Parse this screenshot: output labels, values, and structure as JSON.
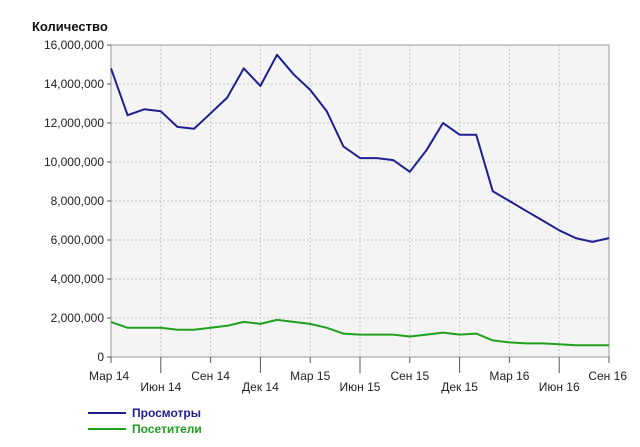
{
  "chart_data": {
    "type": "line",
    "ylabel": "Количество",
    "xlabel": "",
    "ylim": [
      0,
      16000000
    ],
    "yticks": [
      0,
      2000000,
      4000000,
      6000000,
      8000000,
      10000000,
      12000000,
      14000000,
      16000000
    ],
    "ytick_labels": [
      "0",
      "2,000,000",
      "4,000,000",
      "6,000,000",
      "8,000,000",
      "10,000,000",
      "12,000,000",
      "14,000,000",
      "16,000,000"
    ],
    "x_labels": [
      {
        "label": "Мар 14",
        "index": 0,
        "row": 0
      },
      {
        "label": "Июн 14",
        "index": 3,
        "row": 1
      },
      {
        "label": "Сен 14",
        "index": 6,
        "row": 0
      },
      {
        "label": "Дек 14",
        "index": 9,
        "row": 1
      },
      {
        "label": "Мар 15",
        "index": 12,
        "row": 0
      },
      {
        "label": "Июн 15",
        "index": 15,
        "row": 1
      },
      {
        "label": "Сен 15",
        "index": 18,
        "row": 0
      },
      {
        "label": "Дек 15",
        "index": 21,
        "row": 1
      },
      {
        "label": "Мар 16",
        "index": 24,
        "row": 0
      },
      {
        "label": "Июн 16",
        "index": 27,
        "row": 1
      },
      {
        "label": "Сен 16",
        "index": 30,
        "row": 0
      }
    ],
    "x": [
      "2014-03",
      "2014-04",
      "2014-05",
      "2014-06",
      "2014-07",
      "2014-08",
      "2014-09",
      "2014-10",
      "2014-11",
      "2014-12",
      "2015-01",
      "2015-02",
      "2015-03",
      "2015-04",
      "2015-05",
      "2015-06",
      "2015-07",
      "2015-08",
      "2015-09",
      "2015-10",
      "2015-11",
      "2015-12",
      "2016-01",
      "2016-02",
      "2016-03",
      "2016-04",
      "2016-05",
      "2016-06",
      "2016-07",
      "2016-08",
      "2016-09"
    ],
    "grid": true,
    "legend_position": "bottom-left",
    "series": [
      {
        "name": "Просмотры",
        "color": "#1f1f8f",
        "values": [
          14800000,
          12400000,
          12700000,
          12600000,
          11800000,
          11700000,
          12500000,
          13300000,
          14800000,
          13900000,
          15500000,
          14500000,
          13700000,
          12600000,
          10800000,
          10200000,
          10200000,
          10100000,
          9500000,
          10600000,
          12000000,
          11400000,
          11400000,
          8500000,
          8000000,
          7500000,
          7000000,
          6500000,
          6100000,
          5900000,
          6100000
        ]
      },
      {
        "name": "Посетители",
        "color": "#1fa01f",
        "values": [
          1800000,
          1500000,
          1500000,
          1500000,
          1400000,
          1400000,
          1500000,
          1600000,
          1800000,
          1700000,
          1900000,
          1800000,
          1700000,
          1500000,
          1200000,
          1150000,
          1150000,
          1150000,
          1050000,
          1150000,
          1250000,
          1150000,
          1200000,
          850000,
          750000,
          700000,
          700000,
          650000,
          600000,
          600000,
          600000
        ]
      }
    ]
  }
}
